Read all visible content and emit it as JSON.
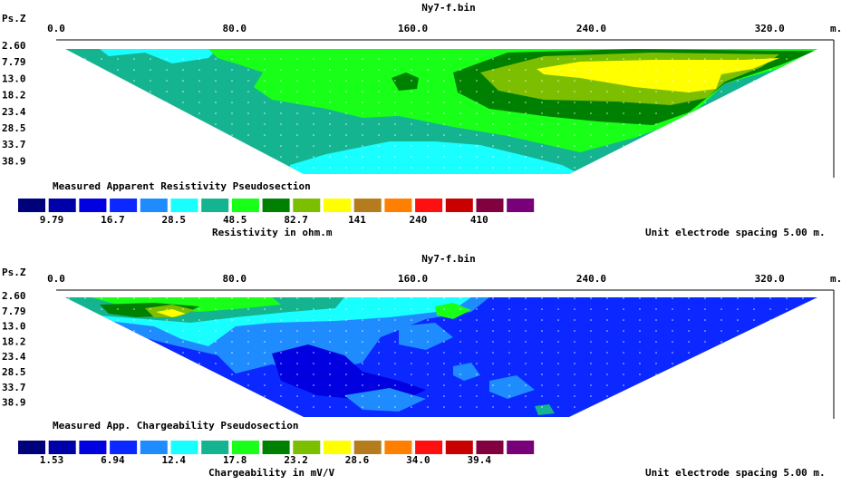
{
  "panels": [
    {
      "id": "resistivity",
      "file_title": "Ny7-f.bin",
      "depth_axis_label": "Ps.Z",
      "x_unit": "m.",
      "section_label": "Measured Apparent Resistivity Pseudosection",
      "scale_label": "Resistivity in ohm.m",
      "spacing_note": "Unit electrode spacing 5.00 m.",
      "legend_values": [
        "9.79",
        "16.7",
        "28.5",
        "48.5",
        "82.7",
        "141",
        "240",
        "410"
      ]
    },
    {
      "id": "chargeability",
      "file_title": "Ny7-f.bin",
      "depth_axis_label": "Ps.Z",
      "x_unit": "m.",
      "section_label": "Measured App. Chargeability Pseudosection",
      "scale_label": "Chargeability in mV/V",
      "spacing_note": "Unit electrode spacing 5.00 m.",
      "legend_values": [
        "1.53",
        "6.94",
        "12.4",
        "17.8",
        "23.2",
        "28.6",
        "34.0",
        "39.4"
      ]
    }
  ],
  "chart_data": [
    {
      "type": "heatmap",
      "title": "Ny7-f.bin",
      "subtitle": "Measured Apparent Resistivity Pseudosection",
      "x_ticks": [
        "0.0",
        "80.0",
        "160.0",
        "240.0",
        "320.0"
      ],
      "x_tick_values": [
        0,
        80,
        160,
        240,
        320
      ],
      "x_unit": "m.",
      "xlim": [
        0,
        350
      ],
      "y_ticks": [
        "2.60",
        "7.79",
        "13.0",
        "18.2",
        "23.4",
        "28.5",
        "33.7",
        "38.9"
      ],
      "y_tick_values": [
        2.6,
        7.79,
        13.0,
        18.2,
        23.4,
        28.5,
        33.7,
        38.9
      ],
      "ylabel": "Ps.Z",
      "colorbar_label": "Resistivity in ohm.m",
      "colorbar_values": [
        9.79,
        16.7,
        28.5,
        48.5,
        82.7,
        141,
        240,
        410
      ],
      "colors": [
        "#00007a",
        "#0000a8",
        "#0000e0",
        "#0a28ff",
        "#1e8cff",
        "#19ffff",
        "#15b491",
        "#18ff18",
        "#008000",
        "#7cbe00",
        "#ffff00",
        "#b47c1c",
        "#ff8000",
        "#ff1010",
        "#c80000",
        "#800040",
        "#780078"
      ],
      "note": "Unit electrode spacing 5.00 m."
    },
    {
      "type": "heatmap",
      "title": "Ny7-f.bin",
      "subtitle": "Measured App. Chargeability Pseudosection",
      "x_ticks": [
        "0.0",
        "80.0",
        "160.0",
        "240.0",
        "320.0"
      ],
      "x_tick_values": [
        0,
        80,
        160,
        240,
        320
      ],
      "x_unit": "m.",
      "xlim": [
        0,
        350
      ],
      "y_ticks": [
        "2.60",
        "7.79",
        "13.0",
        "18.2",
        "23.4",
        "28.5",
        "33.7",
        "38.9"
      ],
      "y_tick_values": [
        2.6,
        7.79,
        13.0,
        18.2,
        23.4,
        28.5,
        33.7,
        38.9
      ],
      "ylabel": "Ps.Z",
      "colorbar_label": "Chargeability in mV/V",
      "colorbar_values": [
        1.53,
        6.94,
        12.4,
        17.8,
        23.2,
        28.6,
        34.0,
        39.4
      ],
      "colors": [
        "#00007a",
        "#0000a8",
        "#0000e0",
        "#0a28ff",
        "#1e8cff",
        "#19ffff",
        "#15b491",
        "#18ff18",
        "#008000",
        "#7cbe00",
        "#ffff00",
        "#b47c1c",
        "#ff8000",
        "#ff1010",
        "#c80000",
        "#800040",
        "#780078"
      ],
      "note": "Unit electrode spacing 5.00 m."
    }
  ]
}
